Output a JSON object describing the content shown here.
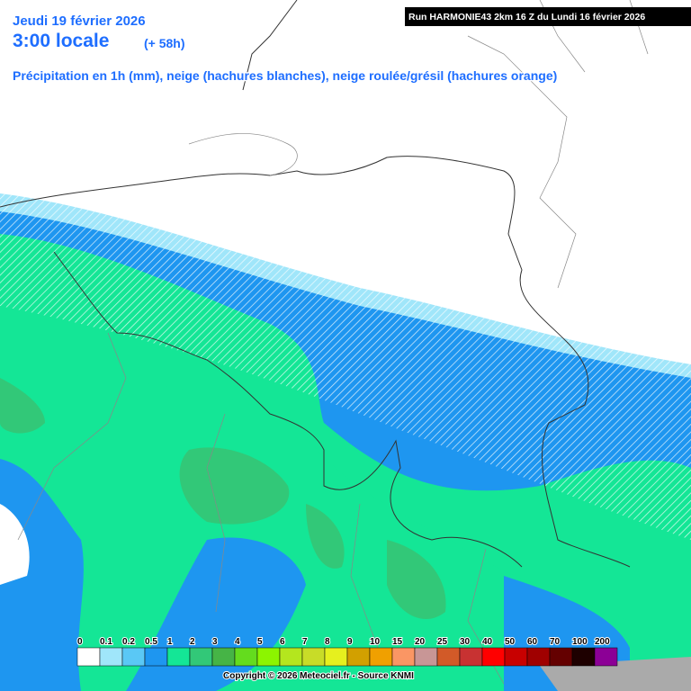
{
  "header": {
    "date": "Jeudi 19 février 2026",
    "time": "3:00 locale",
    "lead": "(+ 58h)",
    "subtitle": "Précipitation en 1h (mm), neige (hachures blanches), neige roulée/grésil (hachures orange)",
    "run": "Run HARMONIE43 2km 16 Z du Lundi 16 février 2026"
  },
  "legend": {
    "labels": [
      0,
      0.1,
      0.2,
      0.5,
      1,
      2,
      3,
      4,
      5,
      6,
      7,
      8,
      9,
      10,
      15,
      20,
      25,
      30,
      40,
      50,
      60,
      70,
      100,
      200
    ],
    "colors": [
      "#ffffff",
      "#a0e6fa",
      "#5ac8f5",
      "#1e96f0",
      "#14e696",
      "#32c878",
      "#46b446",
      "#64dc1e",
      "#8cf500",
      "#b4e61e",
      "#c8dc28",
      "#e6f01e",
      "#d2a000",
      "#f0a000",
      "#fa9664",
      "#c89696",
      "#d25a28",
      "#c83232",
      "#ff0000",
      "#c80000",
      "#a00000",
      "#640000",
      "#1e0000",
      "#8c0096"
    ]
  },
  "footer": {
    "copyright": "Copyright © 2026 Meteociel.fr - Source KNMI"
  }
}
